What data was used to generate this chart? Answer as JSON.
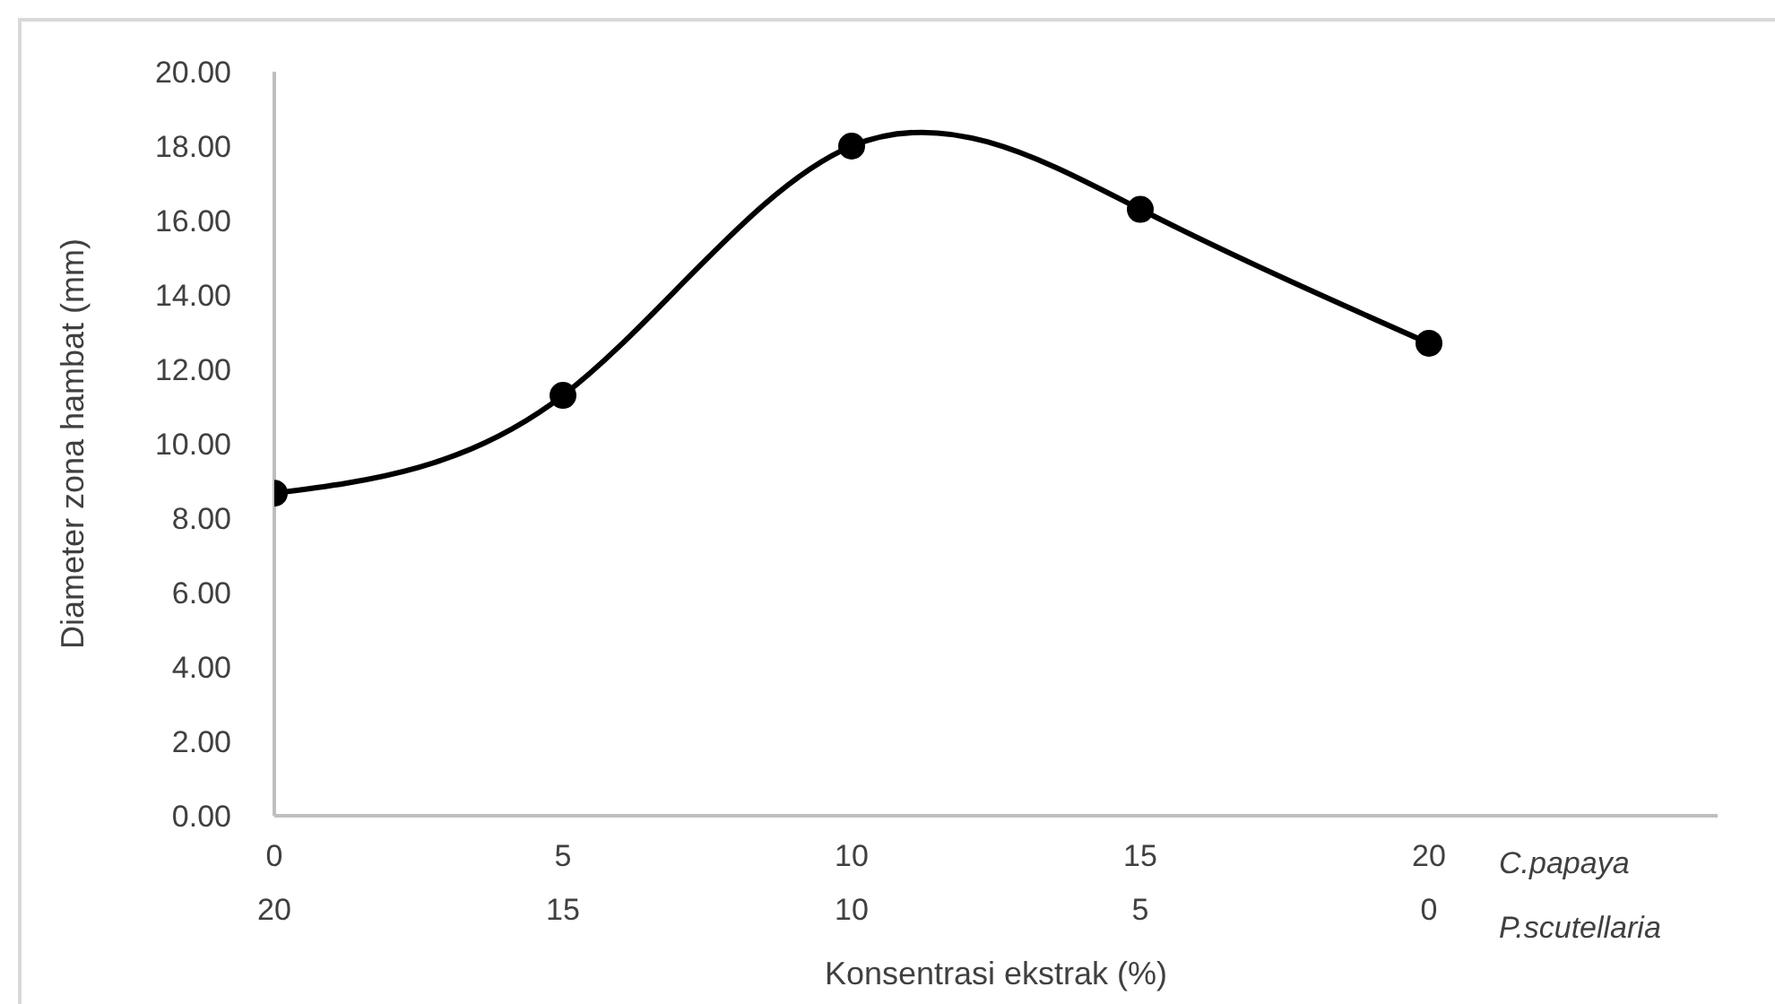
{
  "chart_data": {
    "type": "line",
    "xlabel": "Konsentrasi ekstrak (%)",
    "ylabel": "Diameter zona hambat (mm)",
    "x": [
      0,
      5,
      10,
      15,
      20
    ],
    "series": [
      {
        "color": "#000000",
        "values": [
          8.67,
          11.3,
          18.0,
          16.3,
          12.7
        ]
      }
    ],
    "xlim": [
      0,
      25
    ],
    "xticks": [
      0,
      5,
      10,
      15,
      20
    ],
    "x2lim": [
      20,
      -5
    ],
    "x2ticks": [
      20,
      15,
      10,
      5,
      0
    ],
    "ylim": [
      0,
      20
    ],
    "yticks": [
      {
        "value": 0,
        "label": "0.00"
      },
      {
        "value": 2,
        "label": "2.00"
      },
      {
        "value": 4,
        "label": "4.00"
      },
      {
        "value": 6,
        "label": "6.00"
      },
      {
        "value": 8,
        "label": "8.00"
      },
      {
        "value": 10,
        "label": "10.00"
      },
      {
        "value": 12,
        "label": "12.00"
      },
      {
        "value": 14,
        "label": "14.00"
      },
      {
        "value": 16,
        "label": "16.00"
      },
      {
        "value": 18,
        "label": "18.00"
      },
      {
        "value": 20,
        "label": "20.00"
      }
    ],
    "annotations": [
      "C.papaya",
      "P.scutellaria"
    ],
    "grid": false,
    "legend": false,
    "marker": "circle",
    "line_style": "solid"
  }
}
